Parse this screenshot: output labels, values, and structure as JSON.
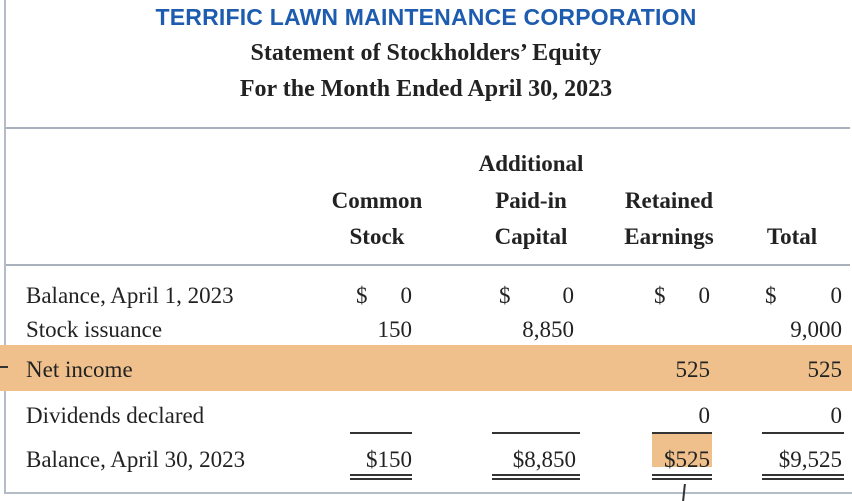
{
  "header": {
    "company": "TERRIFIC LAWN MAINTENANCE CORPORATION",
    "statement": "Statement of Stockholders’ Equity",
    "period": "For the Month Ended April 30, 2023"
  },
  "columns": {
    "common_stock": [
      "Common",
      "Stock"
    ],
    "apic": [
      "Additional",
      "Paid-in",
      "Capital"
    ],
    "retained": [
      "Retained",
      "Earnings"
    ],
    "total": [
      "Total"
    ]
  },
  "rows": [
    {
      "label": "Balance, April 1, 2023",
      "common": "0",
      "apic": "0",
      "retained": "0",
      "total": "0"
    },
    {
      "label": "Stock issuance",
      "common": "150",
      "apic": "8,850",
      "retained": "",
      "total": "9,000"
    },
    {
      "label": "Net income",
      "common": "",
      "apic": "",
      "retained": "525",
      "total": "525"
    },
    {
      "label": "Dividends declared",
      "common": "",
      "apic": "",
      "retained": "0",
      "total": "0"
    },
    {
      "label": "Balance, April 30, 2023",
      "common": "$150",
      "apic": "$8,850",
      "retained": "$525",
      "total": "$9,525"
    }
  ],
  "currency_symbol": "$",
  "colors": {
    "title_blue": "#1e5cb0",
    "highlight": "#efc08c",
    "rule": "#a8b1bc"
  }
}
